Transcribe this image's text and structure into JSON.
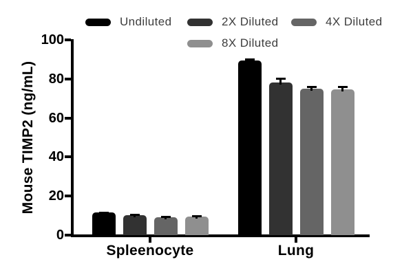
{
  "chart_data": {
    "type": "bar",
    "title": "",
    "ylabel": "Mouse TIMP2 (ng/mL)",
    "xlabel": "",
    "ylim": [
      0,
      100
    ],
    "yticks": [
      0,
      20,
      40,
      60,
      80,
      100
    ],
    "categories": [
      "Spleenocyte",
      "Lung"
    ],
    "series": [
      {
        "name": "Undiluted",
        "color": "#000000",
        "values": [
          11.5,
          89.3
        ],
        "errors": [
          0.2,
          0.8
        ]
      },
      {
        "name": "2X Diluted",
        "color": "#323232",
        "values": [
          10.3,
          78.2
        ],
        "errors": [
          0.4,
          2.0
        ]
      },
      {
        "name": "4X Diluted",
        "color": "#656565",
        "values": [
          9.2,
          75.0
        ],
        "errors": [
          0.3,
          1.0
        ]
      },
      {
        "name": "8X Diluted",
        "color": "#8f8f8f",
        "values": [
          9.4,
          74.6
        ],
        "errors": [
          0.3,
          1.4
        ]
      }
    ],
    "legend_position": "top",
    "grid": false,
    "error_bar_color": "#000000",
    "background_color": "#ffffff"
  }
}
